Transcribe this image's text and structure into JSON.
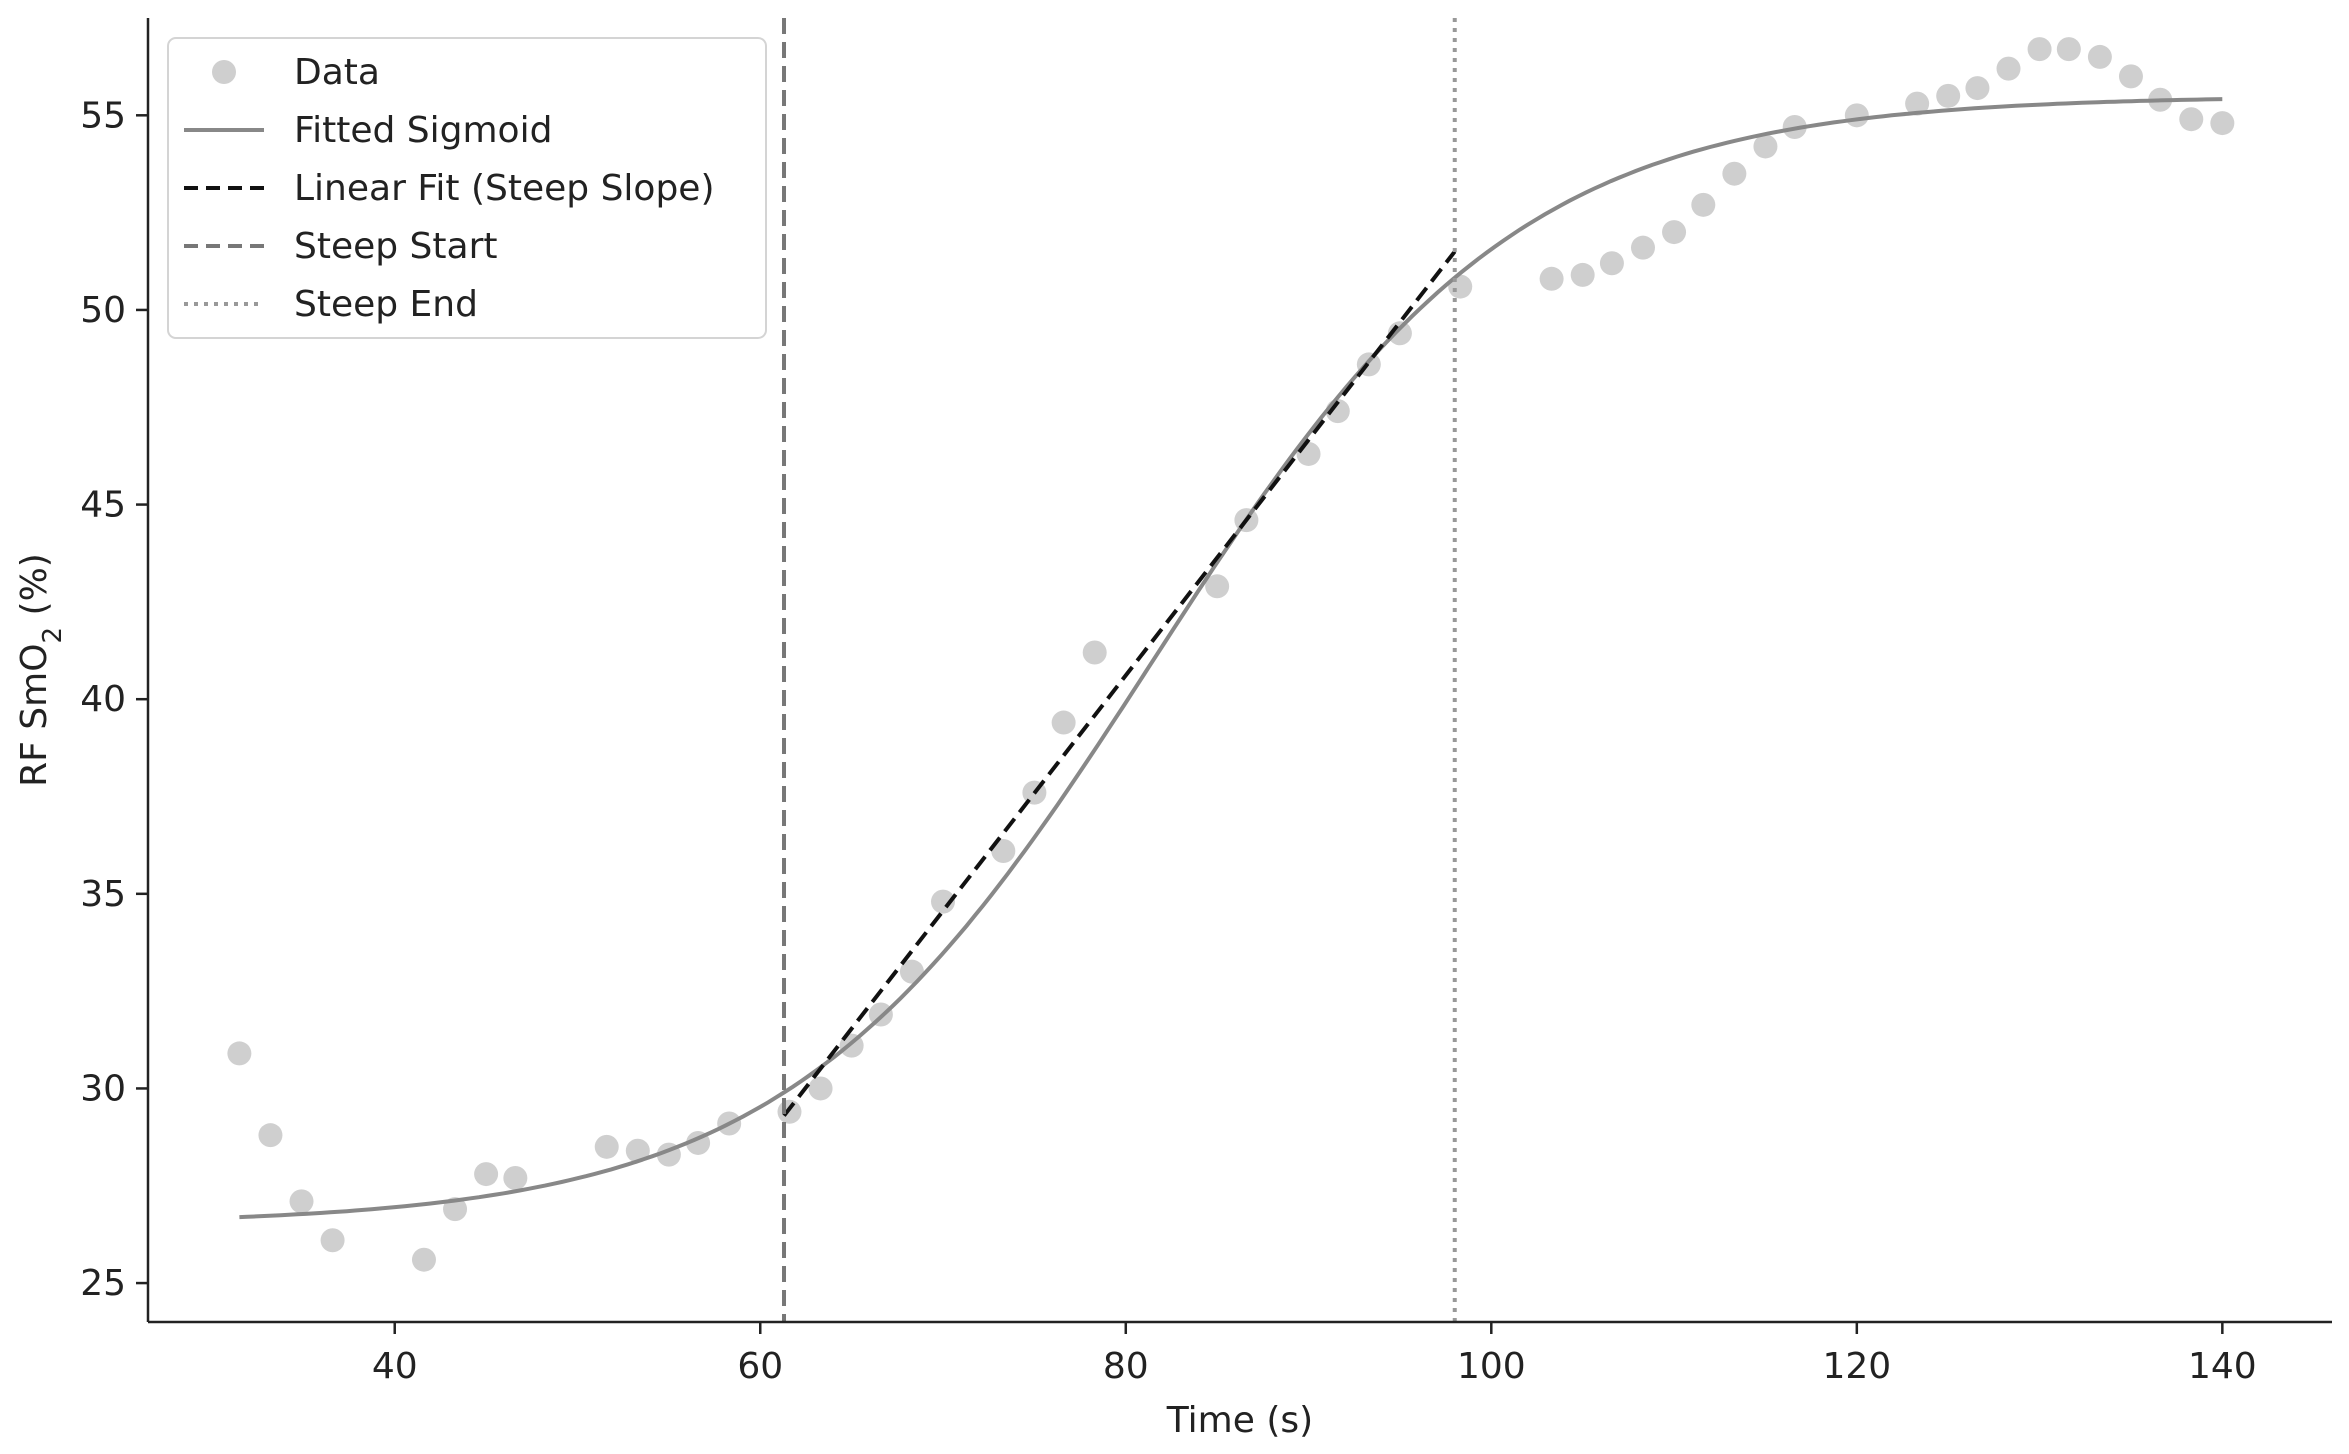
{
  "chart_data": {
    "type": "scatter",
    "title": "",
    "xlabel": "Time (s)",
    "ylabel": "RF SmO",
    "ylabel_sub": "2",
    "ylabel_suffix": " (%)",
    "xlim": [
      26.5,
      146
    ],
    "ylim": [
      24,
      57.5
    ],
    "xticks": [
      40,
      60,
      80,
      100,
      120,
      140
    ],
    "yticks": [
      25,
      30,
      35,
      40,
      45,
      50,
      55
    ],
    "grid": false,
    "legend_position": "top-left",
    "colors": {
      "data": "#cfcfcf",
      "sigmoid": "#888888",
      "linear": "#111111",
      "steep_start": "#777777",
      "steep_end": "#999999",
      "axis": "#222222"
    },
    "legend": [
      {
        "key": "data",
        "label": "Data"
      },
      {
        "key": "sigmoid",
        "label": "Fitted Sigmoid"
      },
      {
        "key": "linear",
        "label": "Linear Fit (Steep Slope)"
      },
      {
        "key": "steep_start",
        "label": "Steep Start"
      },
      {
        "key": "steep_end",
        "label": "Steep End"
      }
    ],
    "series": [
      {
        "key": "data",
        "x": [
          31.5,
          33.2,
          34.9,
          36.6,
          41.6,
          43.3,
          45,
          46.6,
          51.6,
          53.3,
          55,
          56.6,
          58.3,
          61.6,
          63.3,
          65,
          66.6,
          68.3,
          70,
          73.3,
          75,
          76.6,
          78.3,
          85,
          86.6,
          90,
          91.6,
          93.3,
          95,
          98.3,
          103.3,
          105,
          106.6,
          108.3,
          110,
          111.6,
          113.3,
          115,
          116.6,
          120,
          123.3,
          125,
          126.6,
          128.3,
          130,
          131.6,
          133.3,
          135,
          136.6,
          138.3,
          140
        ],
        "y": [
          30.9,
          28.8,
          27.1,
          26.1,
          25.6,
          26.9,
          27.8,
          27.7,
          28.5,
          28.4,
          28.3,
          28.6,
          29.1,
          29.4,
          30.0,
          31.1,
          31.9,
          33.0,
          34.8,
          36.1,
          37.6,
          39.4,
          41.2,
          42.9,
          44.6,
          46.3,
          47.4,
          48.6,
          49.4,
          50.6,
          50.8,
          50.9,
          51.2,
          51.6,
          52.0,
          52.7,
          53.5,
          54.2,
          54.7,
          55.0,
          55.3,
          55.5,
          55.7,
          56.2,
          56.7,
          56.7,
          56.5,
          56.0,
          55.4,
          54.9,
          54.8
        ]
      },
      {
        "key": "sigmoid",
        "model": "logistic",
        "x_range": [
          31.5,
          140
        ],
        "lower": 26.5,
        "upper": 55.5,
        "midpoint": 81.5,
        "rate": 0.1
      },
      {
        "key": "linear",
        "x": [
          61.3,
          98
        ],
        "y": [
          29.3,
          51.5
        ]
      },
      {
        "key": "steep_start",
        "x_value": 61.3
      },
      {
        "key": "steep_end",
        "x_value": 98
      }
    ]
  }
}
